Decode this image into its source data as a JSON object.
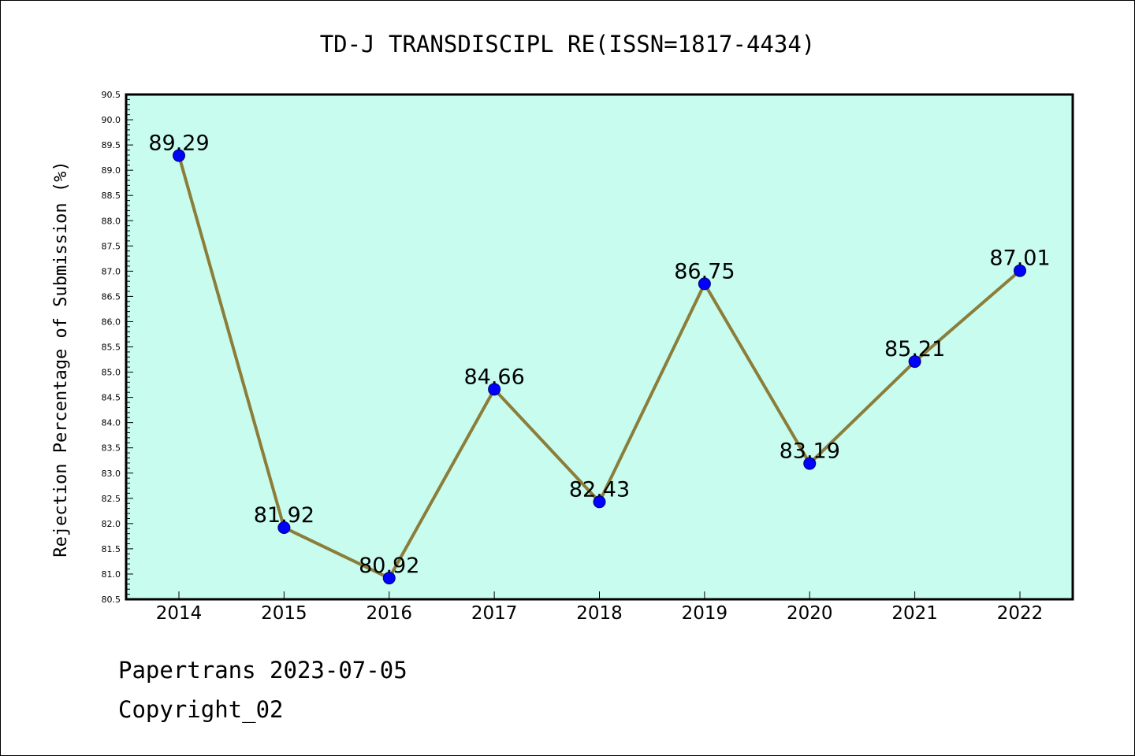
{
  "chart_data": {
    "type": "line",
    "title": "TD-J TRANSDISCIPL RE(ISSN=1817-4434)",
    "xlabel": "",
    "ylabel": "Rejection Percentage of Submission (%)",
    "categories": [
      "2014",
      "2015",
      "2016",
      "2017",
      "2018",
      "2019",
      "2020",
      "2021",
      "2022"
    ],
    "series": [
      {
        "values": [
          89.29,
          81.92,
          80.92,
          84.66,
          82.43,
          86.75,
          83.19,
          85.21,
          87.01
        ],
        "data_labels": [
          "89.29",
          "81.92",
          "80.92",
          "84.66",
          "82.43",
          "86.75",
          "83.19",
          "85.21",
          "87.01"
        ],
        "line_color": "#8b7d3a",
        "marker_color": "#0000ff"
      }
    ],
    "ylim": [
      80.5,
      90.5
    ],
    "y_ticks": [
      "80.5",
      "81.0",
      "81.5",
      "82.0",
      "82.5",
      "83.0",
      "83.5",
      "84.0",
      "84.5",
      "85.0",
      "85.5",
      "86.0",
      "86.5",
      "87.0",
      "87.5",
      "88.0",
      "88.5",
      "89.0",
      "89.5",
      "90.0",
      "90.5"
    ],
    "plot_background": "#c8fcee",
    "grid": false,
    "legend": "none"
  },
  "footer": {
    "line1": "Papertrans 2023-07-05",
    "line2": "Copyright_02"
  }
}
